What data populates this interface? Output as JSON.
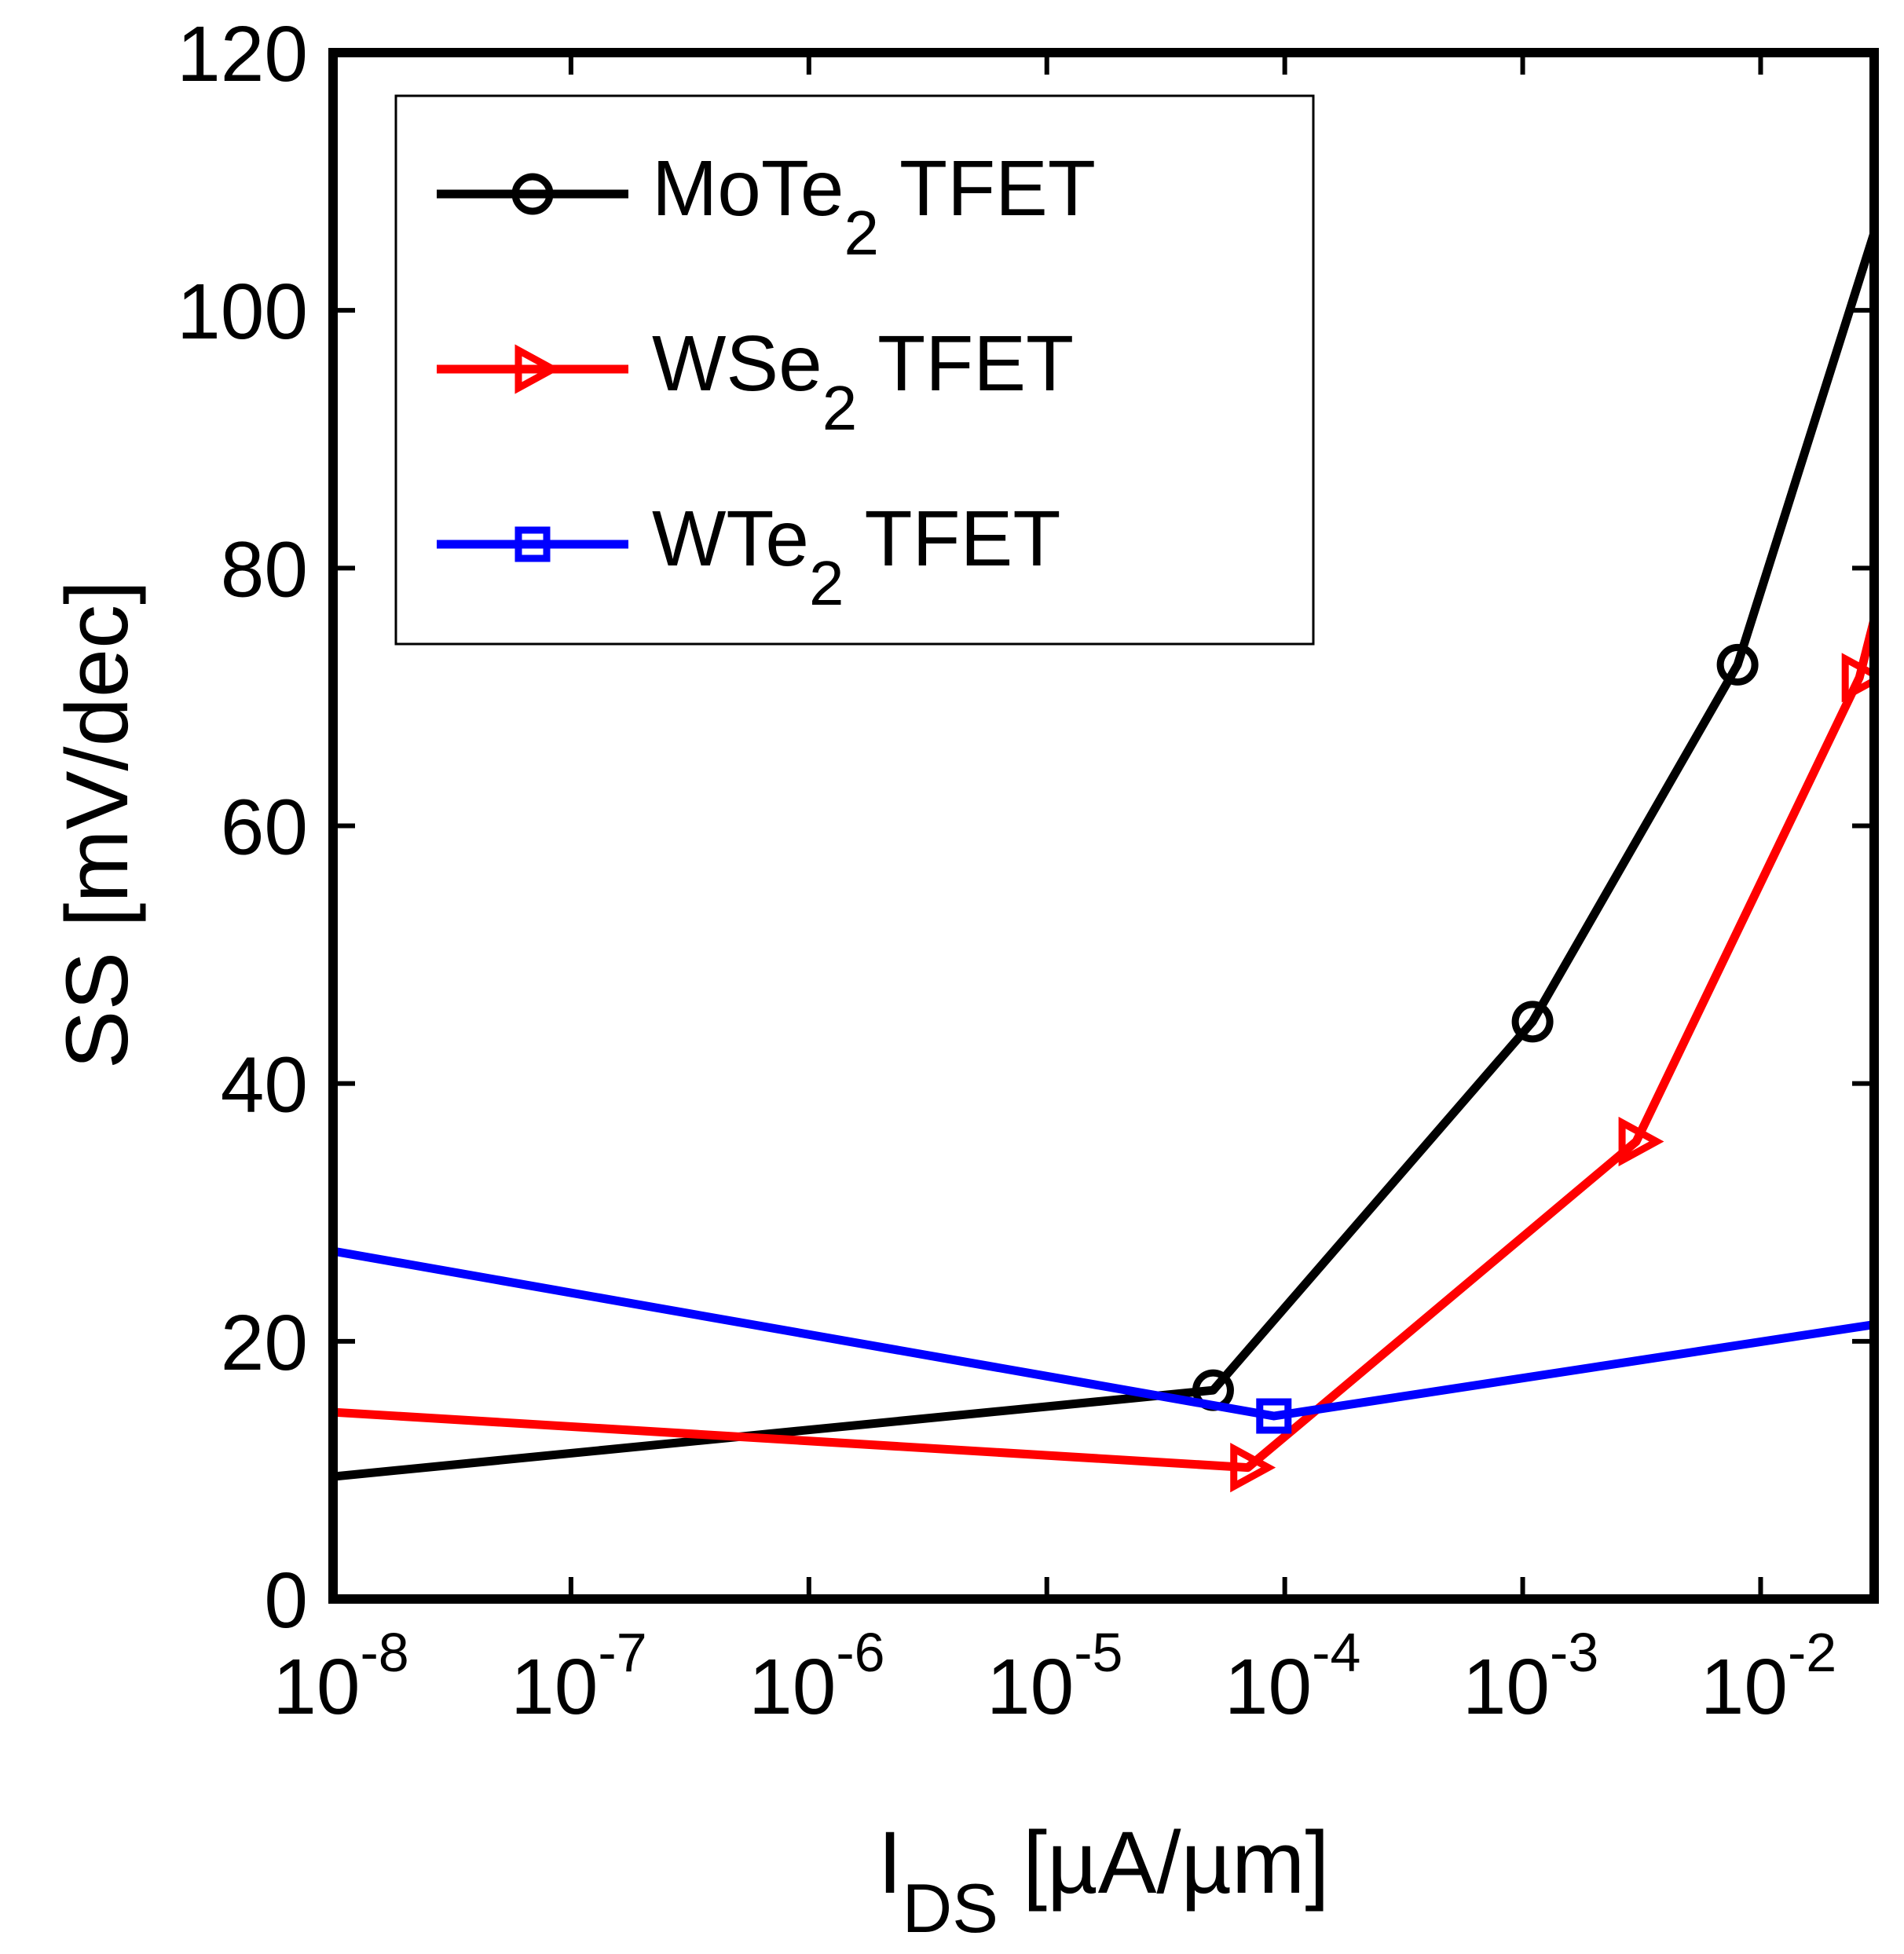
{
  "chart_data": {
    "type": "line",
    "title": "",
    "xlabel": "I_DS [µA/µm]",
    "xlabel_main": "I",
    "xlabel_sub": "DS",
    "xlabel_units": " [µA/µm]",
    "ylabel": "SS [mV/dec]",
    "xscale": "log",
    "xlim": [
      1e-08,
      0.03
    ],
    "ylim": [
      0,
      120
    ],
    "y_ticks": [
      0,
      20,
      40,
      60,
      80,
      100,
      120
    ],
    "y_tick_labels": [
      "0",
      "20",
      "40",
      "60",
      "80",
      "100",
      "120"
    ],
    "x_tick_exponents": [
      -8,
      -7,
      -6,
      -5,
      -4,
      -3,
      -2
    ],
    "x_tick_labels": [
      {
        "base": "10",
        "exp": "-8"
      },
      {
        "base": "10",
        "exp": "-7"
      },
      {
        "base": "10",
        "exp": "-6"
      },
      {
        "base": "10",
        "exp": "-5"
      },
      {
        "base": "10",
        "exp": "-4"
      },
      {
        "base": "10",
        "exp": "-3"
      },
      {
        "base": "10",
        "exp": "-2"
      }
    ],
    "legend_position": "top-left",
    "series": [
      {
        "name": "MoTe2 TFET",
        "legend_main": "MoTe",
        "legend_sub": "2",
        "legend_rest": " TFET",
        "color": "#000000",
        "marker": "circle",
        "x": [
          1e-08,
          5e-05,
          0.0011,
          0.008,
          0.03
        ],
        "y": [
          9.5,
          16.2,
          44.8,
          72.5,
          106
        ],
        "marker_indices": [
          1,
          2,
          3
        ]
      },
      {
        "name": "WSe2 TFET",
        "legend_main": "WSe",
        "legend_sub": "2",
        "legend_rest": " TFET",
        "color": "#ff0000",
        "marker": "triangle-right",
        "x": [
          1e-08,
          7e-05,
          0.003,
          0.026,
          0.03
        ],
        "y": [
          14.5,
          10.2,
          35.5,
          71.5,
          76
        ],
        "marker_indices": [
          1,
          2,
          3
        ]
      },
      {
        "name": "WTe2 TFET",
        "legend_main": "WTe",
        "legend_sub": "2",
        "legend_rest": " TFET",
        "color": "#0000ff",
        "marker": "square",
        "x": [
          1e-08,
          9e-05,
          0.03
        ],
        "y": [
          27,
          14.2,
          21.3
        ],
        "marker_indices": [
          1
        ]
      }
    ]
  }
}
